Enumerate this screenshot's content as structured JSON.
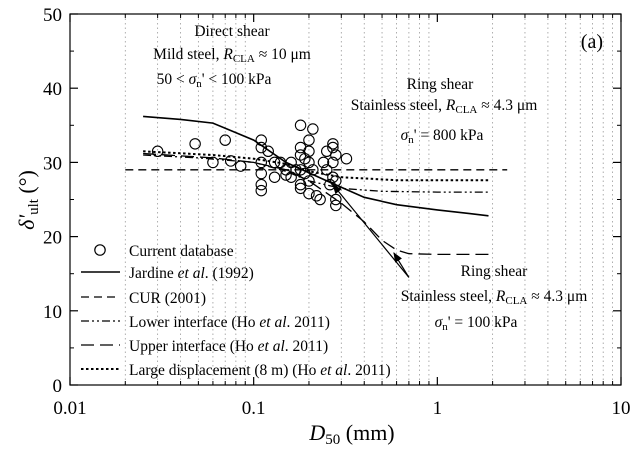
{
  "chart_data": {
    "type": "scatter",
    "panel_label": "(a)",
    "xlabel": "D",
    "xlabel_sub": "50",
    "xlabel_unit": " (mm)",
    "ylabel": "δ'",
    "ylabel_sub": "ult",
    "ylabel_unit": " (°)",
    "x_scale": "log",
    "xlim": [
      0.01,
      10
    ],
    "ylim": [
      0,
      50
    ],
    "x_ticks": [
      0.01,
      0.1,
      1,
      10
    ],
    "x_tick_labels": [
      "0.01",
      "0.1",
      "1",
      "10"
    ],
    "y_ticks": [
      0,
      10,
      20,
      30,
      40,
      50
    ],
    "y_tick_labels": [
      "0",
      "10",
      "20",
      "30",
      "40",
      "50"
    ],
    "grid": "vertical minor log gridlines, dotted",
    "legend_placement": "bottom-left",
    "series": [
      {
        "name": "Current database",
        "style": "open-circle",
        "points": [
          [
            0.03,
            31.5
          ],
          [
            0.048,
            32.5
          ],
          [
            0.06,
            30
          ],
          [
            0.075,
            30.2
          ],
          [
            0.085,
            29.5
          ],
          [
            0.07,
            33
          ],
          [
            0.11,
            33
          ],
          [
            0.11,
            32
          ],
          [
            0.12,
            31.5
          ],
          [
            0.13,
            30
          ],
          [
            0.14,
            30
          ],
          [
            0.11,
            30
          ],
          [
            0.11,
            28.5
          ],
          [
            0.11,
            27
          ],
          [
            0.11,
            26.2
          ],
          [
            0.13,
            28
          ],
          [
            0.15,
            29
          ],
          [
            0.16,
            30
          ],
          [
            0.16,
            28
          ],
          [
            0.17,
            29
          ],
          [
            0.18,
            29
          ],
          [
            0.18,
            35
          ],
          [
            0.18,
            27
          ],
          [
            0.18,
            26.5
          ],
          [
            0.18,
            31
          ],
          [
            0.18,
            32
          ],
          [
            0.19,
            30.5
          ],
          [
            0.19,
            28.5
          ],
          [
            0.2,
            33
          ],
          [
            0.2,
            27.5
          ],
          [
            0.2,
            30
          ],
          [
            0.21,
            34.5
          ],
          [
            0.21,
            29
          ],
          [
            0.22,
            25.5
          ],
          [
            0.23,
            25
          ],
          [
            0.24,
            30
          ],
          [
            0.25,
            31.5
          ],
          [
            0.25,
            29
          ],
          [
            0.26,
            27
          ],
          [
            0.27,
            32
          ],
          [
            0.27,
            30
          ],
          [
            0.27,
            28
          ],
          [
            0.27,
            32.5
          ],
          [
            0.28,
            27.5
          ],
          [
            0.28,
            31
          ],
          [
            0.28,
            25
          ],
          [
            0.28,
            24.2
          ],
          [
            0.32,
            30.5
          ],
          [
            0.2,
            25.8
          ],
          [
            0.15,
            28.3
          ],
          [
            0.2,
            31.5
          ]
        ]
      },
      {
        "name": "Jardine et al. (1992)",
        "name_parts": [
          "Jardine ",
          "et al",
          ". (1992)"
        ],
        "style": "solid",
        "points": [
          [
            0.025,
            36.2
          ],
          [
            0.04,
            35.8
          ],
          [
            0.06,
            35.3
          ],
          [
            0.1,
            33
          ],
          [
            0.15,
            30
          ],
          [
            0.25,
            27.5
          ],
          [
            0.4,
            25.3
          ],
          [
            0.6,
            24.3
          ],
          [
            1.0,
            23.6
          ],
          [
            1.5,
            23.1
          ],
          [
            1.9,
            22.8
          ]
        ]
      },
      {
        "name": "CUR (2001)",
        "style": "dashed",
        "points": [
          [
            0.02,
            29
          ],
          [
            2.4,
            29
          ]
        ]
      },
      {
        "name": "Lower interface (Ho et al. 2011)",
        "name_parts": [
          "Lower interface (Ho ",
          "et al",
          ". 2011)"
        ],
        "style": "dash-dot-dot",
        "points": [
          [
            0.025,
            31
          ],
          [
            0.05,
            30.6
          ],
          [
            0.1,
            30
          ],
          [
            0.15,
            28.8
          ],
          [
            0.2,
            27.5
          ],
          [
            0.3,
            26.5
          ],
          [
            0.5,
            26.1
          ],
          [
            1.0,
            26
          ],
          [
            1.9,
            26
          ]
        ]
      },
      {
        "name": "Upper interface (Ho et al. 2011)",
        "name_parts": [
          "Upper interface (Ho ",
          "et al",
          ". 2011)"
        ],
        "style": "long-dash",
        "points": [
          [
            0.025,
            31.2
          ],
          [
            0.06,
            30.6
          ],
          [
            0.1,
            30
          ],
          [
            0.15,
            29
          ],
          [
            0.2,
            27.5
          ],
          [
            0.3,
            24.5
          ],
          [
            0.4,
            22
          ],
          [
            0.5,
            19.5
          ],
          [
            0.6,
            18.2
          ],
          [
            0.7,
            17.7
          ],
          [
            1.0,
            17.6
          ],
          [
            1.9,
            17.6
          ]
        ]
      },
      {
        "name": "Large displacement (8 m) (Ho et al. 2011)",
        "name_parts": [
          "Large displacement (8 m) (Ho ",
          "et al",
          ". 2011)"
        ],
        "style": "dotted",
        "points": [
          [
            0.025,
            31.5
          ],
          [
            0.06,
            31
          ],
          [
            0.1,
            30.5
          ],
          [
            0.15,
            29.8
          ],
          [
            0.2,
            28.8
          ],
          [
            0.3,
            28
          ],
          [
            0.6,
            27.6
          ],
          [
            1.0,
            27.6
          ],
          [
            1.9,
            27.6
          ]
        ]
      }
    ],
    "annotations": {
      "direct_shear": {
        "line1": "Direct shear",
        "line2_a": "Mild steel, ",
        "line2_r": "R",
        "line2_sub": "CLA",
        "line2_b": " ≈ 10 μm",
        "line3_a": "50 < ",
        "line3_sig": "σ",
        "line3_sub": "n",
        "line3_b": "' < 100 kPa"
      },
      "ring_shear_high": {
        "line1": "Ring shear",
        "line2_a": "Stainless steel, ",
        "line2_r": "R",
        "line2_sub": "CLA",
        "line2_b": " ≈ 4.3 μm",
        "line3_sig": "σ",
        "line3_sub": "n",
        "line3_b": "' = 800 kPa"
      },
      "ring_shear_low": {
        "line1": "Ring shear",
        "line2_a": "Stainless steel, ",
        "line2_r": "R",
        "line2_sub": "CLA",
        "line2_b": " ≈ 4.3 μm",
        "line3_sig": "σ",
        "line3_sub": "n",
        "line3_b": "' = 100 kPa"
      }
    },
    "arrows": [
      {
        "from": [
          0.7,
          14.5
        ],
        "to": [
          0.27,
          27
        ]
      },
      {
        "from": [
          0.7,
          14.5
        ],
        "to": [
          0.58,
          17.8
        ]
      }
    ],
    "colors": {
      "ink": "#000000",
      "background": "#ffffff",
      "grid": "#9a9a9a"
    }
  }
}
